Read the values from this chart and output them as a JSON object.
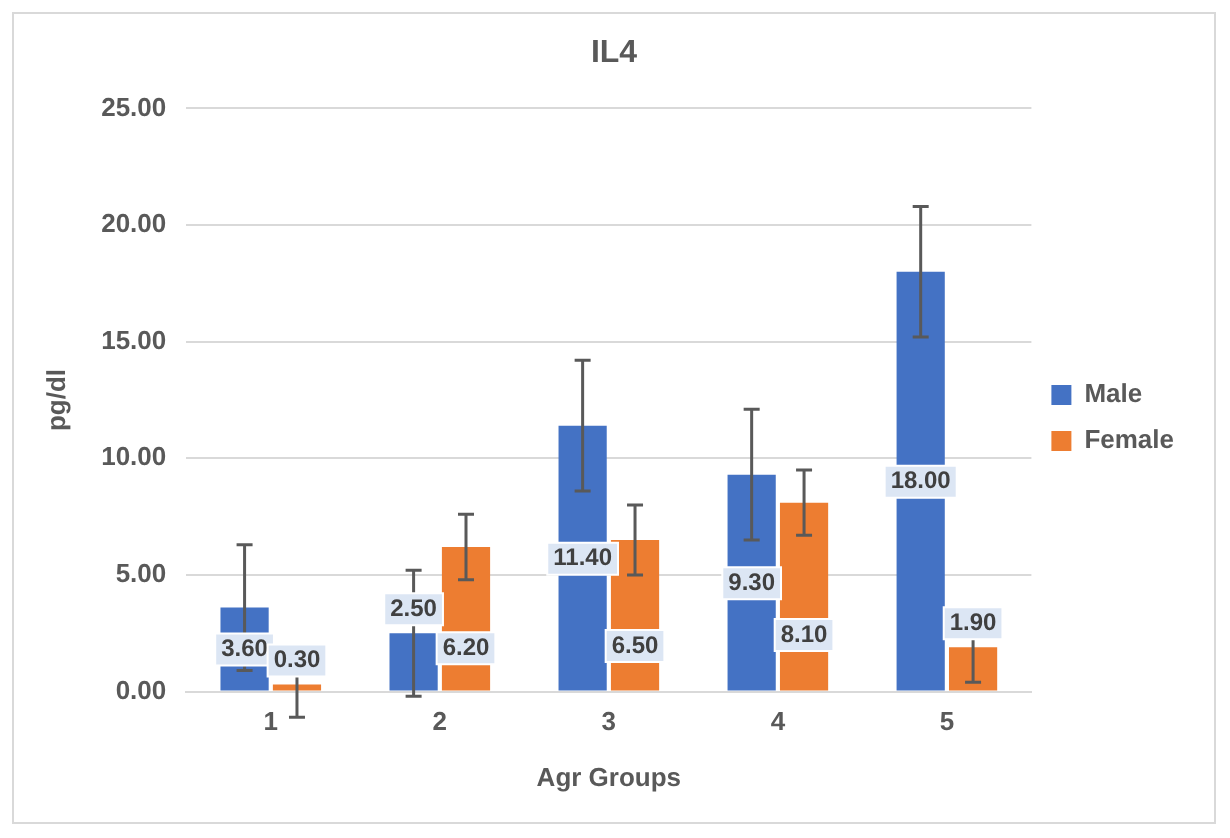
{
  "chart_data": {
    "type": "bar",
    "title": "IL4",
    "xlabel": "Agr Groups",
    "ylabel": "pg/dl",
    "categories": [
      "1",
      "2",
      "3",
      "4",
      "5"
    ],
    "series": [
      {
        "name": "Male",
        "color": "#4472c4",
        "values": [
          3.6,
          2.5,
          11.4,
          9.3,
          18.0
        ],
        "value_labels": [
          "3.60",
          "2.50",
          "11.40",
          "9.30",
          "18.00"
        ],
        "errors": [
          2.7,
          2.7,
          2.8,
          2.8,
          2.8
        ]
      },
      {
        "name": "Female",
        "color": "#ed7d31",
        "values": [
          0.3,
          6.2,
          6.5,
          8.1,
          1.9
        ],
        "value_labels": [
          "0.30",
          "6.20",
          "6.50",
          "8.10",
          "1.90"
        ],
        "errors": [
          1.4,
          1.4,
          1.5,
          1.4,
          1.5
        ]
      }
    ],
    "ylim": [
      0,
      25
    ],
    "yticks": [
      {
        "value": 0,
        "label": "0.00"
      },
      {
        "value": 5,
        "label": "5.00"
      },
      {
        "value": 10,
        "label": "10.00"
      },
      {
        "value": 15,
        "label": "15.00"
      },
      {
        "value": 20,
        "label": "20.00"
      },
      {
        "value": 25,
        "label": "25.00"
      }
    ],
    "grid": "y",
    "legend": "right"
  }
}
